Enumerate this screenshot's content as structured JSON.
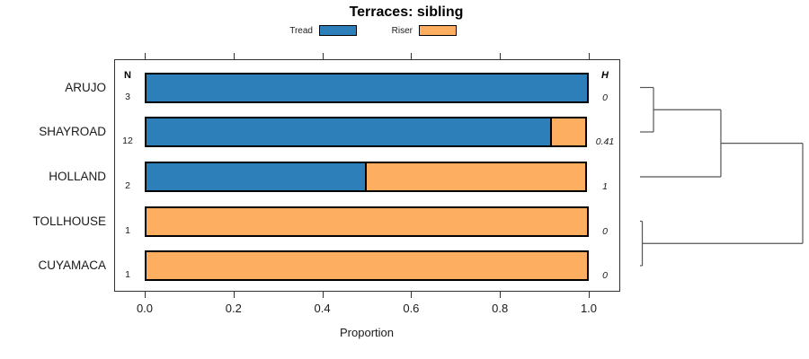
{
  "title": "Terraces: sibling",
  "legend": {
    "items": [
      {
        "label": "Tread",
        "color": "#2c7fb8"
      },
      {
        "label": "Riser",
        "color": "#fdae61"
      }
    ]
  },
  "columns": {
    "n_header": "N",
    "h_header": "H"
  },
  "x_axis": {
    "label": "Proportion",
    "ticks": [
      "0.0",
      "0.2",
      "0.4",
      "0.6",
      "0.8",
      "1.0"
    ],
    "tick_values": [
      0,
      0.2,
      0.4,
      0.6,
      0.8,
      1.0
    ],
    "lim": [
      0,
      1
    ]
  },
  "chart_data": {
    "type": "bar",
    "orientation": "horizontal",
    "stacked": true,
    "title": "Terraces: sibling",
    "xlabel": "Proportion",
    "xlim": [
      0,
      1
    ],
    "grid": false,
    "legend_position": "top",
    "categories": [
      "ARUJO",
      "SHAYROAD",
      "HOLLAND",
      "TOLLHOUSE",
      "CUYAMACA"
    ],
    "series": [
      {
        "name": "Tread",
        "color": "#2c7fb8",
        "values": [
          1.0,
          0.9167,
          0.5,
          0.0,
          0.0
        ]
      },
      {
        "name": "Riser",
        "color": "#fdae61",
        "values": [
          0.0,
          0.0833,
          0.5,
          1.0,
          1.0
        ]
      }
    ],
    "rows": [
      {
        "category": "ARUJO",
        "n": "3",
        "h": "0"
      },
      {
        "category": "SHAYROAD",
        "n": "12",
        "h": "0.41"
      },
      {
        "category": "HOLLAND",
        "n": "2",
        "h": "1"
      },
      {
        "category": "TOLLHOUSE",
        "n": "1",
        "h": "0"
      },
      {
        "category": "CUYAMACA",
        "n": "1",
        "h": "0"
      }
    ],
    "dendrogram": {
      "description": "hierarchical clustering of rows, heights normalized 0-1",
      "tree": {
        "height": 1.0,
        "children": [
          {
            "height": 0.497,
            "children": [
              {
                "height": 0.083,
                "children": [
                  {
                    "leaf": "ARUJO"
                  },
                  {
                    "leaf": "SHAYROAD"
                  }
                ]
              },
              {
                "leaf": "HOLLAND"
              }
            ]
          },
          {
            "height": 0.014,
            "children": [
              {
                "leaf": "TOLLHOUSE"
              },
              {
                "leaf": "CUYAMACA"
              }
            ]
          }
        ]
      }
    }
  },
  "colors": {
    "tread": "#2c7fb8",
    "riser": "#fdae61",
    "bar_border": "#000000",
    "box_border": "#333333",
    "dendro_line": "#555555",
    "background": "#ffffff"
  }
}
